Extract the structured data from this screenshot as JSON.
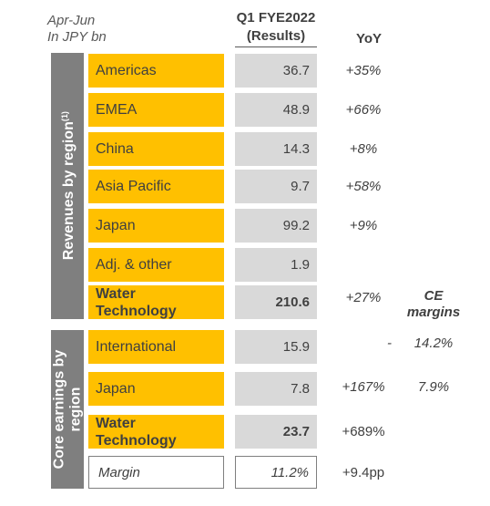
{
  "header": {
    "period": "Apr-Jun",
    "unit": "In JPY bn",
    "column_title_line1": "Q1 FYE2022",
    "column_title_line2": "(Results)",
    "yoy_title": "YoY"
  },
  "revenues": {
    "side_label": "Revenues by region",
    "side_footnote": "(1)",
    "rows": [
      {
        "label": "Americas",
        "value": "36.7",
        "yoy": "+35%"
      },
      {
        "label": "EMEA",
        "value": "48.9",
        "yoy": "+66%"
      },
      {
        "label": "China",
        "value": "14.3",
        "yoy": "+8%"
      },
      {
        "label": "Asia Pacific",
        "value": "9.7",
        "yoy": "+58%"
      },
      {
        "label": "Japan",
        "value": "99.2",
        "yoy": "+9%"
      },
      {
        "label": "Adj. & other",
        "value": "1.9",
        "yoy": ""
      }
    ],
    "total": {
      "label_line1": "Water",
      "label_line2": "Technology",
      "value": "210.6",
      "yoy": "+27%"
    }
  },
  "ce_margins_title_line1": "CE",
  "ce_margins_title_line2": "margins",
  "core": {
    "side_label_line1": "Core earnings by",
    "side_label_line2": "region",
    "rows": [
      {
        "label": "International",
        "value": "15.9",
        "yoy": "-",
        "ce_margin": "14.2%"
      },
      {
        "label": "Japan",
        "value": "7.8",
        "yoy": "+167%",
        "ce_margin": "7.9%"
      }
    ],
    "total": {
      "label_line1": "Water",
      "label_line2": "Technology",
      "value": "23.7",
      "yoy": "+689%"
    },
    "margin": {
      "label": "Margin",
      "value": "11.2%",
      "yoy": "+9.4pp"
    }
  }
}
